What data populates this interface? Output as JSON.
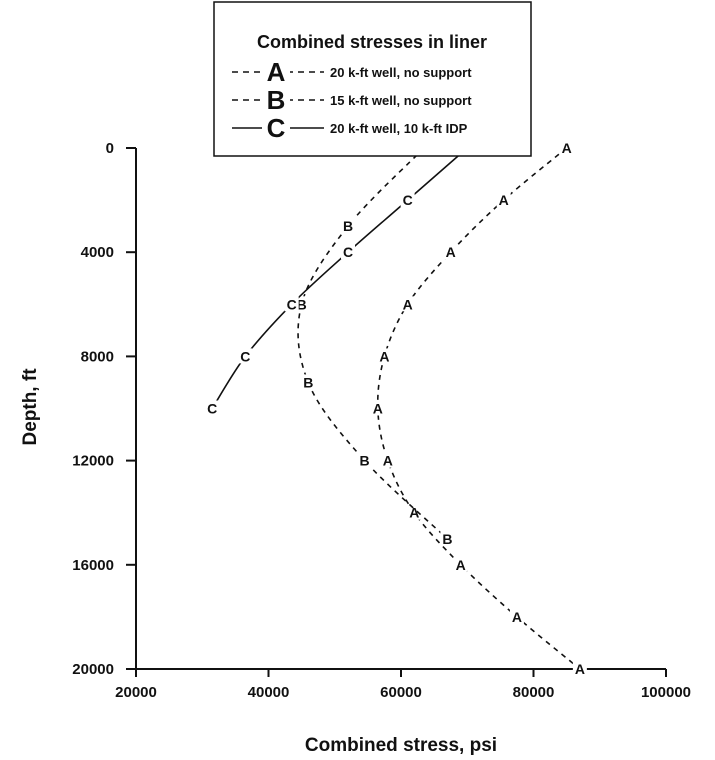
{
  "chart_data": {
    "type": "line",
    "title": "Combined stresses in liner",
    "xlabel": "Combined stress, psi",
    "ylabel": "Depth, ft",
    "xlim": [
      20000,
      100000
    ],
    "ylim": [
      0,
      20000
    ],
    "y_inverted": true,
    "x_ticks": [
      "20000",
      "40000",
      "60000",
      "80000",
      "100000"
    ],
    "y_ticks": [
      "0",
      "4000",
      "8000",
      "12000",
      "16000",
      "20000"
    ],
    "grid": false,
    "legend_position": "top",
    "series": [
      {
        "marker": "A",
        "name": "20 k-ft well, no support",
        "line_style": "dashed",
        "points": [
          {
            "x": 85000,
            "y": 0
          },
          {
            "x": 75500,
            "y": 2000
          },
          {
            "x": 67500,
            "y": 4000
          },
          {
            "x": 61000,
            "y": 6000
          },
          {
            "x": 57500,
            "y": 8000
          },
          {
            "x": 56500,
            "y": 10000
          },
          {
            "x": 58000,
            "y": 12000
          },
          {
            "x": 62000,
            "y": 14000
          },
          {
            "x": 69000,
            "y": 16000
          },
          {
            "x": 77500,
            "y": 18000
          },
          {
            "x": 87000,
            "y": 20000
          }
        ]
      },
      {
        "marker": "B",
        "name": "15 k-ft well, no support",
        "line_style": "dashed",
        "points": [
          {
            "x": 63500,
            "y": 0
          },
          {
            "x": 52000,
            "y": 3000
          },
          {
            "x": 45000,
            "y": 6000
          },
          {
            "x": 46000,
            "y": 9000
          },
          {
            "x": 54500,
            "y": 12000
          },
          {
            "x": 67000,
            "y": 15000
          }
        ]
      },
      {
        "marker": "C",
        "name": "20 k-ft well, 10 k-ft IDP",
        "line_style": "solid",
        "points": [
          {
            "x": 70000,
            "y": 0
          },
          {
            "x": 61000,
            "y": 2000
          },
          {
            "x": 52000,
            "y": 4000
          },
          {
            "x": 43500,
            "y": 6000
          },
          {
            "x": 36500,
            "y": 8000
          },
          {
            "x": 31500,
            "y": 10000
          }
        ]
      }
    ]
  }
}
